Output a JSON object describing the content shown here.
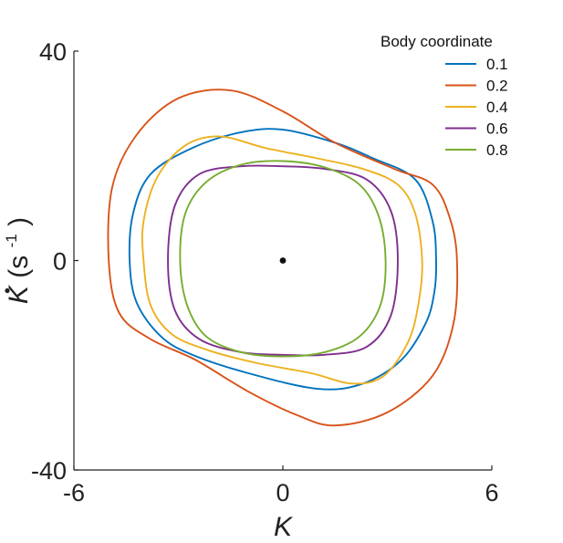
{
  "chart_data": {
    "type": "line",
    "xlabel": "K",
    "ylabel": {
      "symbol": "K",
      "unit_open": "(s",
      "unit_exp": "-1",
      "unit_close": ")"
    },
    "xlim": [
      -6,
      6
    ],
    "ylim": [
      -40,
      40
    ],
    "xticks": [
      -6,
      0,
      6
    ],
    "yticks": [
      -40,
      0,
      40
    ],
    "xtick_labels": [
      "-6",
      "0",
      "6"
    ],
    "ytick_labels": [
      "-40",
      "0",
      "40"
    ],
    "grid": false,
    "legend": {
      "title": "Body coordinate",
      "placement": "top-right"
    },
    "center_point": {
      "x": 0,
      "y": 0
    },
    "series": [
      {
        "name": "0.1",
        "color": "#0072BD",
        "points": [
          [
            4.4,
            0
          ],
          [
            4.3,
            7.5
          ],
          [
            3.8,
            15.5
          ],
          [
            2.6,
            19.5
          ],
          [
            1.5,
            22.5
          ],
          [
            0,
            25
          ],
          [
            -1.2,
            24.5
          ],
          [
            -2.6,
            21.5
          ],
          [
            -3.8,
            16.5
          ],
          [
            -4.3,
            9
          ],
          [
            -4.4,
            0
          ],
          [
            -4.2,
            -8
          ],
          [
            -3.5,
            -14.5
          ],
          [
            -2.6,
            -18
          ],
          [
            -1,
            -21.5
          ],
          [
            1,
            -24.5
          ],
          [
            2.3,
            -23.5
          ],
          [
            3.4,
            -19
          ],
          [
            4.1,
            -12
          ],
          [
            4.35,
            -6
          ],
          [
            4.4,
            0
          ]
        ]
      },
      {
        "name": "0.2",
        "color": "#D95319",
        "points": [
          [
            5,
            0
          ],
          [
            4.8,
            8
          ],
          [
            4.3,
            14.5
          ],
          [
            3.2,
            17.5
          ],
          [
            1.5,
            22.5
          ],
          [
            0,
            28.5
          ],
          [
            -1.5,
            32.5
          ],
          [
            -3,
            31
          ],
          [
            -4.2,
            24
          ],
          [
            -4.9,
            14
          ],
          [
            -5,
            0
          ],
          [
            -4.7,
            -10
          ],
          [
            -3.8,
            -15
          ],
          [
            -2.5,
            -19
          ],
          [
            -1,
            -25
          ],
          [
            0.4,
            -29.5
          ],
          [
            1.5,
            -31.5
          ],
          [
            3,
            -29
          ],
          [
            4.3,
            -22
          ],
          [
            4.9,
            -12
          ],
          [
            5,
            0
          ]
        ]
      },
      {
        "name": "0.4",
        "color": "#EDB120",
        "points": [
          [
            4.0,
            0
          ],
          [
            3.8,
            9
          ],
          [
            3.3,
            14.5
          ],
          [
            2.3,
            17.5
          ],
          [
            1,
            19.5
          ],
          [
            -0.5,
            21.5
          ],
          [
            -1.8,
            23.7
          ],
          [
            -2.8,
            22
          ],
          [
            -3.6,
            16
          ],
          [
            -4.0,
            7.5
          ],
          [
            -4.0,
            0
          ],
          [
            -3.8,
            -8.5
          ],
          [
            -3.2,
            -14
          ],
          [
            -2.2,
            -17
          ],
          [
            -0.8,
            -19.5
          ],
          [
            0.8,
            -21.5
          ],
          [
            2,
            -23.5
          ],
          [
            2.9,
            -22
          ],
          [
            3.6,
            -15.5
          ],
          [
            3.9,
            -8
          ],
          [
            4.0,
            0
          ]
        ]
      },
      {
        "name": "0.6",
        "color": "#7E2F8E",
        "points": [
          [
            3.3,
            0
          ],
          [
            3.1,
            9.5
          ],
          [
            2.4,
            15.5
          ],
          [
            1.2,
            17.5
          ],
          [
            0,
            18
          ],
          [
            -1.2,
            18
          ],
          [
            -2.4,
            16.5
          ],
          [
            -3.1,
            10.5
          ],
          [
            -3.3,
            0
          ],
          [
            -3.1,
            -9.5
          ],
          [
            -2.4,
            -15
          ],
          [
            -1.2,
            -17.5
          ],
          [
            0,
            -18
          ],
          [
            1.2,
            -18
          ],
          [
            2.4,
            -16.5
          ],
          [
            3.1,
            -10.5
          ],
          [
            3.3,
            0
          ]
        ]
      },
      {
        "name": "0.8",
        "color": "#77AC30",
        "points": [
          [
            2.95,
            0
          ],
          [
            2.75,
            8.5
          ],
          [
            2.2,
            14.5
          ],
          [
            1.2,
            17.8
          ],
          [
            0,
            19
          ],
          [
            -1.2,
            18.3
          ],
          [
            -2.2,
            15
          ],
          [
            -2.8,
            9
          ],
          [
            -2.95,
            0
          ],
          [
            -2.75,
            -8.5
          ],
          [
            -2.2,
            -14.5
          ],
          [
            -1.2,
            -17.5
          ],
          [
            0,
            -18.3
          ],
          [
            1.2,
            -17.5
          ],
          [
            2.2,
            -14.5
          ],
          [
            2.8,
            -8.5
          ],
          [
            2.95,
            0
          ]
        ]
      }
    ]
  }
}
